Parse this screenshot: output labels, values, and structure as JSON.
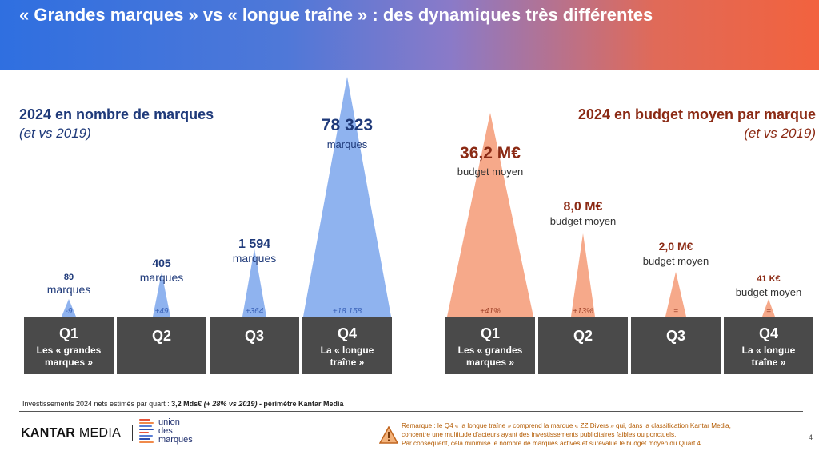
{
  "header": {
    "title": "« Grandes marques » vs « longue traîne » : des dynamiques très différentes"
  },
  "left": {
    "title": "2024 en nombre de marques",
    "subtitle": "(et vs 2019)"
  },
  "right": {
    "title": "2024 en budget moyen par marque",
    "subtitle": "(et vs 2019)"
  },
  "chart_data": [
    {
      "type": "bar",
      "title": "2024 en nombre de marques",
      "categories": [
        "Q1",
        "Q2",
        "Q3",
        "Q4"
      ],
      "category_labels": [
        "Les « grandes marques »",
        "",
        "",
        "La « longue traîne »"
      ],
      "values": [
        89,
        405,
        1594,
        78323
      ],
      "value_labels": [
        "89",
        "405",
        "1 594",
        "78 323"
      ],
      "unit_labels": [
        "marques",
        "marques",
        "marques",
        "marques"
      ],
      "deltas": [
        "-9",
        "+49",
        "+364",
        "+18 158"
      ],
      "color": "#8fb3ef"
    },
    {
      "type": "bar",
      "title": "2024 en budget moyen par marque",
      "categories": [
        "Q1",
        "Q2",
        "Q3",
        "Q4"
      ],
      "category_labels": [
        "Les « grandes marques »",
        "",
        "",
        "La « longue traîne »"
      ],
      "values": [
        36.2,
        8.0,
        2.0,
        0.041
      ],
      "value_labels": [
        "36,2 M€",
        "8,0 M€",
        "2,0 M€",
        "41 K€"
      ],
      "unit_labels": [
        "budget moyen",
        "budget moyen",
        "budget moyen",
        "budget moyen"
      ],
      "deltas": [
        "+41%",
        "+13%",
        "=",
        "="
      ],
      "color": "#f6a98a"
    }
  ],
  "footnote": {
    "prefix": "Investissements 2024 nets estimés par quart : ",
    "amount": "3,2 Mds€",
    "change": "(+ 28% vs 2019)",
    "suffix": " - périmètre Kantar Media"
  },
  "logos": {
    "kantar_bold": "KANTAR",
    "kantar_rest": " MEDIA",
    "udm_line1": "union",
    "udm_line2": "des",
    "udm_line3": "marques"
  },
  "remark": {
    "label": "Remarque",
    "line1": " : le Q4 « la longue traîne » comprend la marque « ZZ Divers » qui, dans la classification Kantar Media,",
    "line2": "concentre une multitude d'acteurs ayant des investissements publicitaires faibles ou ponctuels.",
    "line3": "Par conséquent, cela minimise le nombre de marques actives et surévalue le budget moyen du Quart 4."
  },
  "page_number": "4",
  "colors": {
    "navy": "#1f3a7a",
    "brown": "#8b2a14",
    "box": "#4a4a4a",
    "delta_blue": "#3a62b8",
    "delta_orange": "#a0432a"
  }
}
